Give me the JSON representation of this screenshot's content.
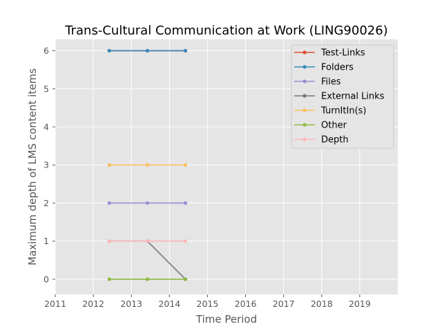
{
  "chart_data": {
    "type": "line",
    "title": "Trans-Cultural Communication at Work (LING90026)",
    "xlabel": "Time Period",
    "ylabel": "Maximum depth of LMS content items",
    "xlim": [
      2011,
      2020
    ],
    "ylim": [
      -0.4,
      6.3
    ],
    "xticks": [
      "2011",
      "2012",
      "2013",
      "2014",
      "2015",
      "2016",
      "2017",
      "2018",
      "2019"
    ],
    "yticks": [
      "0",
      "1",
      "2",
      "3",
      "4",
      "5",
      "6"
    ],
    "grid": true,
    "legend_position": "top-right",
    "x": [
      2012.42,
      2013.42,
      2014.42
    ],
    "series": [
      {
        "name": "Test-Links",
        "color": "#E24A33",
        "values": [
          6,
          6,
          6
        ]
      },
      {
        "name": "Folders",
        "color": "#348ABD",
        "values": [
          6,
          6,
          6
        ]
      },
      {
        "name": "Files",
        "color": "#988ED5",
        "values": [
          2,
          2,
          2
        ]
      },
      {
        "name": "External Links",
        "color": "#777777",
        "values": [
          1,
          1,
          0
        ]
      },
      {
        "name": "TurnItIn(s)",
        "color": "#FBC15E",
        "values": [
          3,
          3,
          3
        ]
      },
      {
        "name": "Other",
        "color": "#8EBA42",
        "values": [
          0,
          0,
          0
        ]
      },
      {
        "name": "Depth",
        "color": "#FFB5B8",
        "values": [
          1,
          1,
          1
        ]
      }
    ]
  }
}
